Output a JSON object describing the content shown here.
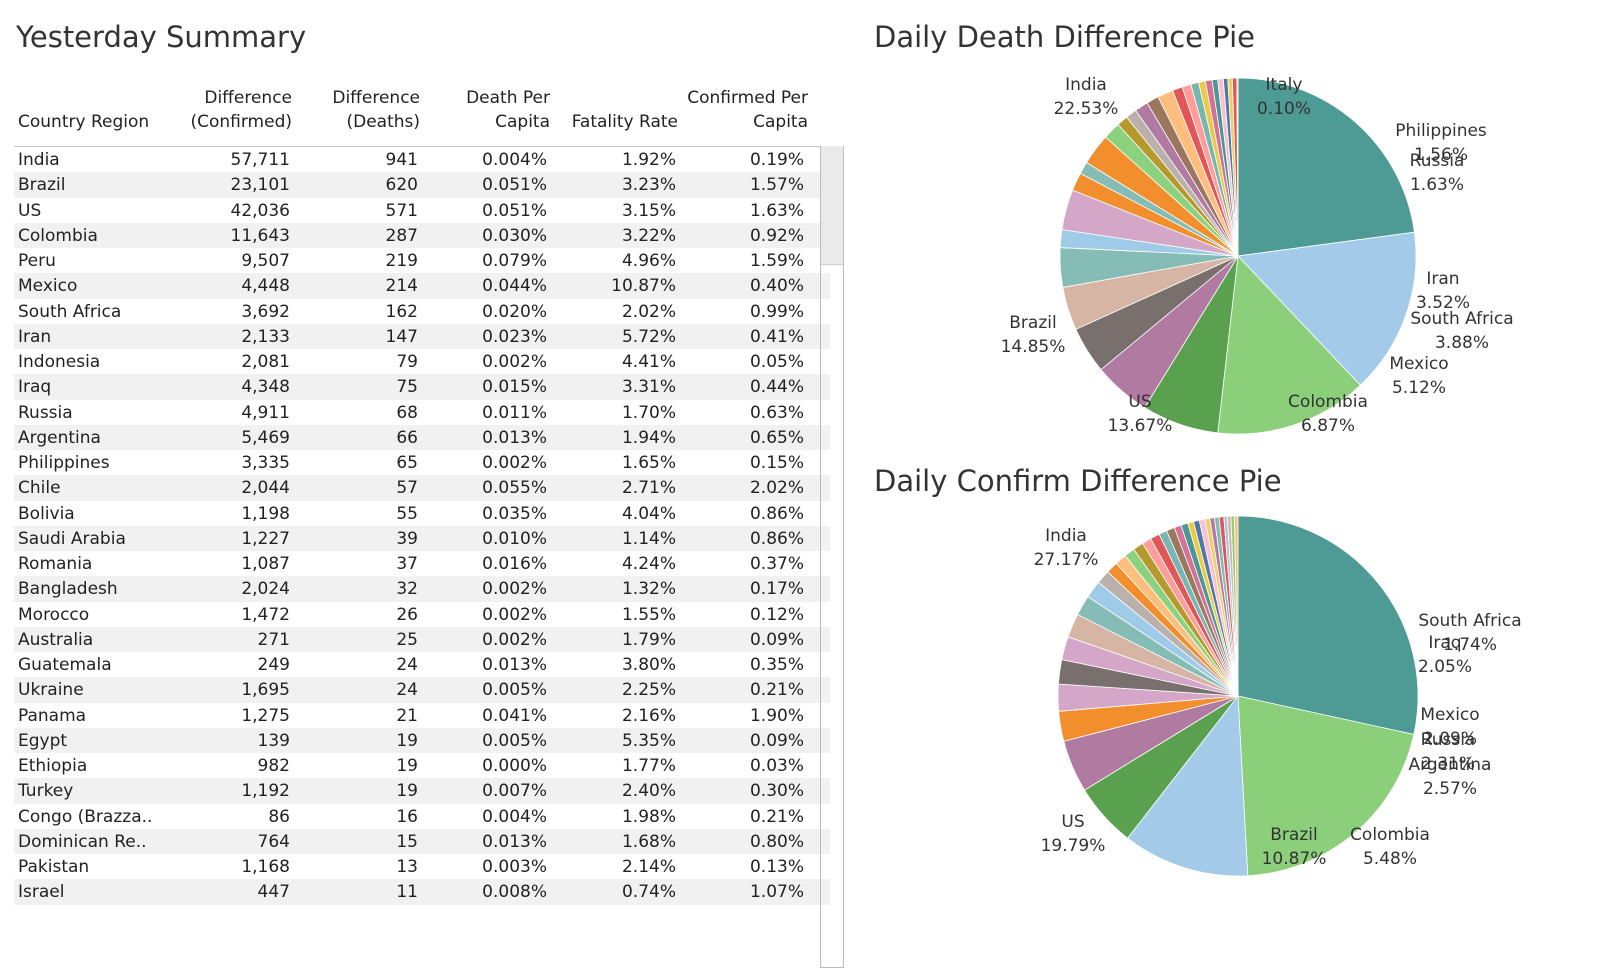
{
  "summary": {
    "title": "Yesterday Summary",
    "headers": [
      [
        "Country Region"
      ],
      [
        "Difference",
        "(Confirmed)"
      ],
      [
        "Difference",
        "(Deaths)"
      ],
      [
        "Death Per",
        "Capita"
      ],
      [
        "Fatality Rate"
      ],
      [
        "Confirmed Per",
        "Capita"
      ]
    ],
    "rows": [
      [
        "India",
        "57,711",
        "941",
        "0.004%",
        "1.92%",
        "0.19%"
      ],
      [
        "Brazil",
        "23,101",
        "620",
        "0.051%",
        "3.23%",
        "1.57%"
      ],
      [
        "US",
        "42,036",
        "571",
        "0.051%",
        "3.15%",
        "1.63%"
      ],
      [
        "Colombia",
        "11,643",
        "287",
        "0.030%",
        "3.22%",
        "0.92%"
      ],
      [
        "Peru",
        "9,507",
        "219",
        "0.079%",
        "4.96%",
        "1.59%"
      ],
      [
        "Mexico",
        "4,448",
        "214",
        "0.044%",
        "10.87%",
        "0.40%"
      ],
      [
        "South Africa",
        "3,692",
        "162",
        "0.020%",
        "2.02%",
        "0.99%"
      ],
      [
        "Iran",
        "2,133",
        "147",
        "0.023%",
        "5.72%",
        "0.41%"
      ],
      [
        "Indonesia",
        "2,081",
        "79",
        "0.002%",
        "4.41%",
        "0.05%"
      ],
      [
        "Iraq",
        "4,348",
        "75",
        "0.015%",
        "3.31%",
        "0.44%"
      ],
      [
        "Russia",
        "4,911",
        "68",
        "0.011%",
        "1.70%",
        "0.63%"
      ],
      [
        "Argentina",
        "5,469",
        "66",
        "0.013%",
        "1.94%",
        "0.65%"
      ],
      [
        "Philippines",
        "3,335",
        "65",
        "0.002%",
        "1.65%",
        "0.15%"
      ],
      [
        "Chile",
        "2,044",
        "57",
        "0.055%",
        "2.71%",
        "2.02%"
      ],
      [
        "Bolivia",
        "1,198",
        "55",
        "0.035%",
        "4.04%",
        "0.86%"
      ],
      [
        "Saudi Arabia",
        "1,227",
        "39",
        "0.010%",
        "1.14%",
        "0.86%"
      ],
      [
        "Romania",
        "1,087",
        "37",
        "0.016%",
        "4.24%",
        "0.37%"
      ],
      [
        "Bangladesh",
        "2,024",
        "32",
        "0.002%",
        "1.32%",
        "0.17%"
      ],
      [
        "Morocco",
        "1,472",
        "26",
        "0.002%",
        "1.55%",
        "0.12%"
      ],
      [
        "Australia",
        "271",
        "25",
        "0.002%",
        "1.79%",
        "0.09%"
      ],
      [
        "Guatemala",
        "249",
        "24",
        "0.013%",
        "3.80%",
        "0.35%"
      ],
      [
        "Ukraine",
        "1,695",
        "24",
        "0.005%",
        "2.25%",
        "0.21%"
      ],
      [
        "Panama",
        "1,275",
        "21",
        "0.041%",
        "2.16%",
        "1.90%"
      ],
      [
        "Egypt",
        "139",
        "19",
        "0.005%",
        "5.35%",
        "0.09%"
      ],
      [
        "Ethiopia",
        "982",
        "19",
        "0.000%",
        "1.77%",
        "0.03%"
      ],
      [
        "Turkey",
        "1,192",
        "19",
        "0.007%",
        "2.40%",
        "0.30%"
      ],
      [
        "Congo (Brazza..",
        "86",
        "16",
        "0.004%",
        "1.98%",
        "0.21%"
      ],
      [
        "Dominican Re..",
        "764",
        "15",
        "0.013%",
        "1.68%",
        "0.80%"
      ],
      [
        "Pakistan",
        "1,168",
        "13",
        "0.003%",
        "2.14%",
        "0.13%"
      ],
      [
        "Israel",
        "447",
        "11",
        "0.008%",
        "0.74%",
        "1.07%"
      ]
    ]
  },
  "chart_data": [
    {
      "type": "pie",
      "title": "Daily Death Difference Pie",
      "slices": [
        {
          "label": "India",
          "value": 22.53,
          "pct": "22.53%",
          "color": "#4e9a94"
        },
        {
          "label": "Brazil",
          "value": 14.85,
          "pct": "14.85%",
          "color": "#a3cbe9"
        },
        {
          "label": "US",
          "value": 13.67,
          "pct": "13.67%",
          "color": "#8bcf7b"
        },
        {
          "label": "Colombia",
          "value": 6.87,
          "pct": "6.87%",
          "color": "#59a14f"
        },
        {
          "label": "Mexico",
          "value": 5.12,
          "pct": "5.12%",
          "color": "#b07aa1"
        },
        {
          "label": "",
          "value": 4.2,
          "color": "#79706e"
        },
        {
          "label": "South Africa",
          "value": 3.88,
          "pct": "3.88%",
          "color": "#d6b5a4"
        },
        {
          "label": "Iran",
          "value": 3.52,
          "pct": "3.52%",
          "color": "#86bcb6"
        },
        {
          "label": "",
          "value": 1.6,
          "color": "#a0cbe8"
        },
        {
          "label": "",
          "value": 3.6,
          "color": "#d4a6c8"
        },
        {
          "label": "Russia",
          "value": 1.63,
          "pct": "1.63%",
          "color": "#f28e2b"
        },
        {
          "label": "",
          "value": 1.1,
          "color": "#86bcb6"
        },
        {
          "label": "",
          "value": 2.8,
          "color": "#f28e2b"
        },
        {
          "label": "Philippines",
          "value": 1.56,
          "pct": "1.56%",
          "color": "#8cd17d"
        },
        {
          "label": "",
          "value": 1.0,
          "color": "#b6992d"
        },
        {
          "label": "",
          "value": 1.0,
          "color": "#bab0ac"
        },
        {
          "label": "",
          "value": 1.2,
          "color": "#b07aa1"
        },
        {
          "label": "",
          "value": 1.1,
          "color": "#9d7660"
        },
        {
          "label": "",
          "value": 1.4,
          "color": "#ffbe7d"
        },
        {
          "label": "",
          "value": 0.9,
          "color": "#e15759"
        },
        {
          "label": "",
          "value": 0.8,
          "color": "#ff9d9a"
        },
        {
          "label": "",
          "value": 0.7,
          "color": "#76b7b2"
        },
        {
          "label": "",
          "value": 0.6,
          "color": "#edc948"
        },
        {
          "label": "",
          "value": 0.6,
          "color": "#d37295"
        },
        {
          "label": "",
          "value": 0.5,
          "color": "#499894"
        },
        {
          "label": "",
          "value": 0.5,
          "color": "#fabfd2"
        },
        {
          "label": "",
          "value": 0.4,
          "color": "#4e79a7"
        },
        {
          "label": "",
          "value": 0.4,
          "color": "#f1ce63"
        },
        {
          "label": "",
          "value": 0.4,
          "color": "#e15759"
        },
        {
          "label": "Italy",
          "value": 0.1,
          "pct": "0.10%",
          "color": "#d7b5a6"
        }
      ]
    },
    {
      "type": "pie",
      "title": "Daily Confirm Difference Pie",
      "slices": [
        {
          "label": "India",
          "value": 27.17,
          "pct": "27.17%",
          "color": "#4e9a94"
        },
        {
          "label": "US",
          "value": 19.79,
          "pct": "19.79%",
          "color": "#8bcf7b"
        },
        {
          "label": "Brazil",
          "value": 10.87,
          "pct": "10.87%",
          "color": "#a3cbe9"
        },
        {
          "label": "Colombia",
          "value": 5.48,
          "pct": "5.48%",
          "color": "#59a14f"
        },
        {
          "label": "",
          "value": 4.5,
          "color": "#b07aa1"
        },
        {
          "label": "Argentina",
          "value": 2.57,
          "pct": "2.57%",
          "color": "#f28e2b"
        },
        {
          "label": "Russia",
          "value": 2.31,
          "pct": "2.31%",
          "color": "#d4a6c8"
        },
        {
          "label": "Mexico",
          "value": 2.09,
          "pct": "2.09%",
          "color": "#79706e"
        },
        {
          "label": "",
          "value": 2.0,
          "color": "#d4a6c8"
        },
        {
          "label": "Iraq",
          "value": 2.05,
          "pct": "2.05%",
          "color": "#d6b5a4"
        },
        {
          "label": "South Africa",
          "value": 1.74,
          "pct": "1.74%",
          "color": "#86bcb6"
        },
        {
          "label": "",
          "value": 1.5,
          "color": "#a0cbe8"
        },
        {
          "label": "",
          "value": 1.2,
          "color": "#bab0ac"
        },
        {
          "label": "",
          "value": 1.0,
          "color": "#f28e2b"
        },
        {
          "label": "",
          "value": 1.0,
          "color": "#ffbe7d"
        },
        {
          "label": "",
          "value": 0.9,
          "color": "#8cd17d"
        },
        {
          "label": "",
          "value": 0.9,
          "color": "#b6992d"
        },
        {
          "label": "",
          "value": 0.8,
          "color": "#ff9d9a"
        },
        {
          "label": "",
          "value": 0.8,
          "color": "#e15759"
        },
        {
          "label": "",
          "value": 0.7,
          "color": "#76b7b2"
        },
        {
          "label": "",
          "value": 0.7,
          "color": "#9d7660"
        },
        {
          "label": "",
          "value": 0.6,
          "color": "#d37295"
        },
        {
          "label": "",
          "value": 0.6,
          "color": "#499894"
        },
        {
          "label": "",
          "value": 0.5,
          "color": "#edc948"
        },
        {
          "label": "",
          "value": 0.5,
          "color": "#4e79a7"
        },
        {
          "label": "",
          "value": 0.5,
          "color": "#fabfd2"
        },
        {
          "label": "",
          "value": 0.4,
          "color": "#f1ce63"
        },
        {
          "label": "",
          "value": 0.4,
          "color": "#b07aa1"
        },
        {
          "label": "",
          "value": 0.4,
          "color": "#86bcb6"
        },
        {
          "label": "",
          "value": 0.4,
          "color": "#e15759"
        },
        {
          "label": "",
          "value": 0.3,
          "color": "#a0cbe8"
        },
        {
          "label": "",
          "value": 0.3,
          "color": "#d7b5a6"
        },
        {
          "label": "",
          "value": 0.3,
          "color": "#8cd17d"
        },
        {
          "label": "",
          "value": 0.3,
          "color": "#ffbe7d"
        }
      ]
    }
  ]
}
